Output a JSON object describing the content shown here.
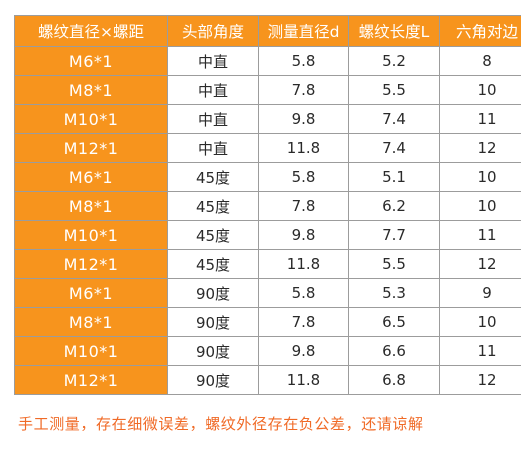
{
  "colors": {
    "header_bg": "#f7941d",
    "spec_col_bg": "#f7941d",
    "footnote": "#f06a26"
  },
  "table": {
    "headers": [
      "螺纹直径×螺距",
      "头部角度",
      "测量直径d",
      "螺纹长度L",
      "六角对边"
    ],
    "rows": [
      [
        "M6*1",
        "中直",
        "5.8",
        "5.2",
        "8"
      ],
      [
        "M8*1",
        "中直",
        "7.8",
        "5.5",
        "10"
      ],
      [
        "M10*1",
        "中直",
        "9.8",
        "7.4",
        "11"
      ],
      [
        "M12*1",
        "中直",
        "11.8",
        "7.4",
        "12"
      ],
      [
        "M6*1",
        "45度",
        "5.8",
        "5.1",
        "10"
      ],
      [
        "M8*1",
        "45度",
        "7.8",
        "6.2",
        "10"
      ],
      [
        "M10*1",
        "45度",
        "9.8",
        "7.7",
        "11"
      ],
      [
        "M12*1",
        "45度",
        "11.8",
        "5.5",
        "12"
      ],
      [
        "M6*1",
        "90度",
        "5.8",
        "5.3",
        "9"
      ],
      [
        "M8*1",
        "90度",
        "7.8",
        "6.5",
        "10"
      ],
      [
        "M10*1",
        "90度",
        "9.8",
        "6.6",
        "11"
      ],
      [
        "M12*1",
        "90度",
        "11.8",
        "6.8",
        "12"
      ]
    ]
  },
  "footnote": "手工测量，存在细微误差，螺纹外径存在负公差，还请谅解"
}
